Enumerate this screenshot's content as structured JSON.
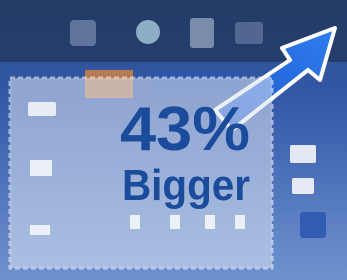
{
  "badge": {
    "percent": "43%",
    "label": "Bigger"
  }
}
